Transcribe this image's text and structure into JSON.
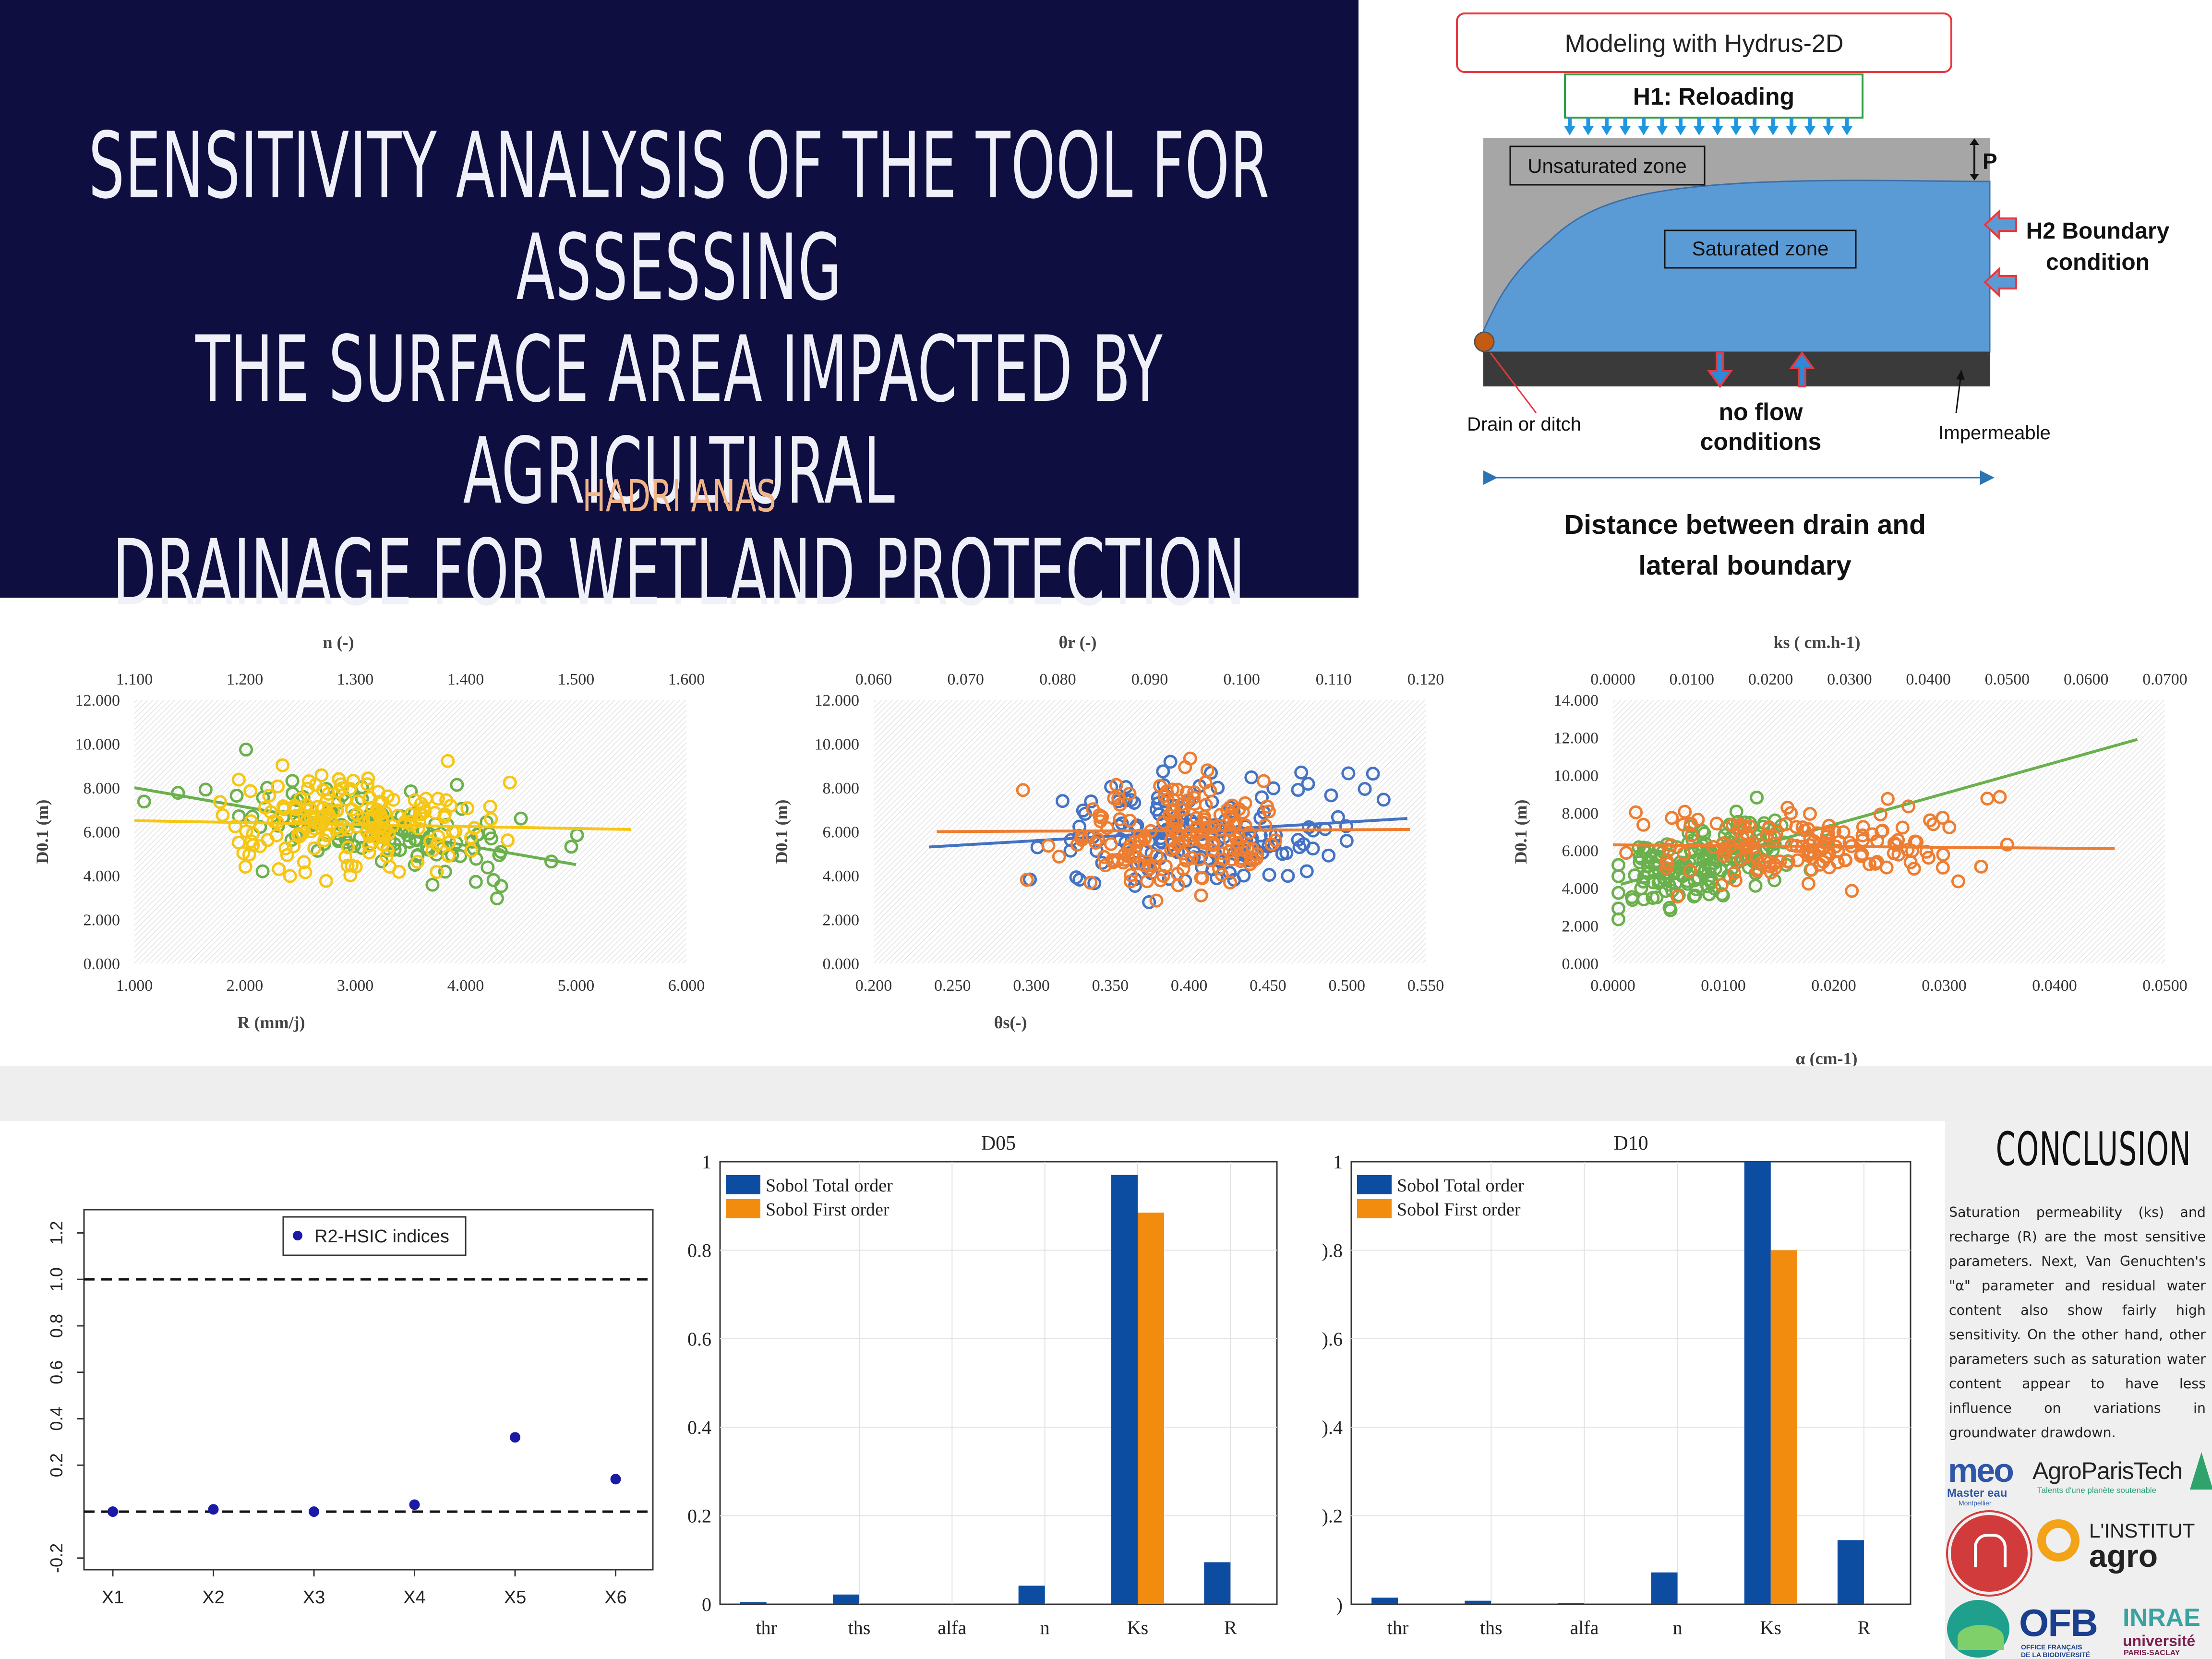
{
  "poster": {
    "title_lines": [
      "SENSITIVITY ANALYSIS OF THE TOOL FOR ASSESSING",
      "THE SURFACE AREA IMPACTED BY AGRICULTURAL",
      "DRAINAGE FOR WETLAND PROTECTION"
    ],
    "author": "HADRI ANAS",
    "colors": {
      "hero_bg": "#0f0e40",
      "author": "#f1b58a"
    }
  },
  "diagram": {
    "header": "Modeling with Hydrus-2D",
    "reloading": "H1: Reloading",
    "unsaturated": "Unsaturated zone",
    "saturated": "Saturated zone",
    "p_label": "P",
    "h2_line1": "H2 Boundary",
    "h2_line2": "condition",
    "drain_label": "Drain or ditch",
    "noflow_line1": "no flow",
    "noflow_line2": "conditions",
    "impermeable": "Impermeable",
    "distance_line1": "Distance between drain and",
    "distance_line2": "lateral boundary"
  },
  "conclusion": {
    "title": "CONCLUSION",
    "text": "Saturation permeability (ks) and recharge (R) are the most sensitive parameters. Next, Van Genuchten's \"α\" parameter and residual water content also show fairly high sensitivity. On the other hand, other parameters such as saturation water content appear to have less influence on variations in groundwater drawdown."
  },
  "logos": {
    "meo_main": "meo",
    "meo_sub": "Master eau",
    "meo_sub2": "Montpellier",
    "agroparis": "AgroParisTech",
    "agroparis_sub": "Talents d'une planète soutenable",
    "institut_top": "L'INSTITUT",
    "institut_main": "agro",
    "ofb": "OFB",
    "ofb_sub1": "OFFICE FRANÇAIS",
    "ofb_sub2": "DE LA BIODIVERSITÉ",
    "inrae": "INRAE",
    "inrae_sub": "université",
    "inrae_sub2": "PARIS-SACLAY"
  },
  "chart_data": [
    {
      "id": "scatter-n-R",
      "type": "scatter",
      "ylabel": "D0.1 (m)",
      "x_top_label": "n (-)",
      "x_bottom_label": "R (mm/j)",
      "ylim": [
        0,
        12
      ],
      "yticks": [
        "0.000",
        "2.000",
        "4.000",
        "6.000",
        "8.000",
        "10.000",
        "12.000"
      ],
      "top_axis": {
        "range": [
          1.1,
          1.6
        ],
        "ticks": [
          "1.100",
          "1.200",
          "1.300",
          "1.400",
          "1.500",
          "1.600"
        ]
      },
      "bottom_axis": {
        "range": [
          1.0,
          6.0
        ],
        "ticks": [
          "1.000",
          "2.000",
          "3.000",
          "4.000",
          "5.000",
          "6.000"
        ]
      },
      "series": [
        {
          "color": "#6ab04c",
          "axis": "top",
          "trend": [
            [
              1.1,
              8.0
            ],
            [
              1.5,
              4.5
            ]
          ],
          "center": [
            1.32,
            6.3
          ],
          "spread": [
            0.13,
            2.1
          ],
          "count": 120,
          "seed": 11
        },
        {
          "color": "#f6c615",
          "axis": "bottom",
          "trend": [
            [
              1.0,
              6.5
            ],
            [
              5.5,
              6.1
            ]
          ],
          "center": [
            3.0,
            6.2
          ],
          "spread": [
            0.95,
            2.2
          ],
          "count": 170,
          "seed": 23
        }
      ]
    },
    {
      "id": "scatter-thr-ths",
      "type": "scatter",
      "ylabel": "D0.1 (m)",
      "x_top_label": "θr (-)",
      "x_bottom_label": "θs(-)",
      "ylim": [
        0,
        12
      ],
      "yticks": [
        "0.000",
        "2.000",
        "4.000",
        "6.000",
        "8.000",
        "10.000",
        "12.000"
      ],
      "top_axis": {
        "range": [
          0.06,
          0.12
        ],
        "ticks": [
          "0.060",
          "0.070",
          "0.080",
          "0.090",
          "0.100",
          "0.110",
          "0.120"
        ]
      },
      "bottom_axis": {
        "range": [
          0.2,
          0.55
        ],
        "ticks": [
          "0.200",
          "0.250",
          "0.300",
          "0.350",
          "0.400",
          "0.450",
          "0.500",
          "0.550"
        ]
      },
      "series": [
        {
          "color": "#4472c4",
          "axis": "top",
          "trend": [
            [
              0.066,
              5.3
            ],
            [
              0.118,
              6.6
            ]
          ],
          "center": [
            0.095,
            6.0
          ],
          "spread": [
            0.014,
            2.3
          ],
          "count": 160,
          "seed": 37
        },
        {
          "color": "#ed7d31",
          "axis": "bottom",
          "trend": [
            [
              0.24,
              6.0
            ],
            [
              0.54,
              6.1
            ]
          ],
          "center": [
            0.39,
            6.0
          ],
          "spread": [
            0.06,
            2.3
          ],
          "count": 170,
          "seed": 41
        }
      ]
    },
    {
      "id": "scatter-ks-alpha",
      "type": "scatter",
      "ylabel": "D0.1 (m)",
      "x_top_label": "ks ( cm.h-1)",
      "x_bottom_label": "α (cm-1)",
      "ylim": [
        0,
        14
      ],
      "yticks": [
        "0.000",
        "2.000",
        "4.000",
        "6.000",
        "8.000",
        "10.000",
        "12.000",
        "14.000"
      ],
      "top_axis": {
        "range": [
          0.0,
          0.07
        ],
        "ticks": [
          "0.0000",
          "0.0100",
          "0.0200",
          "0.0300",
          "0.0400",
          "0.0500",
          "0.0600",
          "0.0700"
        ]
      },
      "bottom_axis": {
        "range": [
          0.0,
          0.055
        ],
        "ticks": [
          "0.0000",
          "0.0100",
          "0.0200",
          "0.0300",
          "0.0400",
          "0.0500"
        ]
      },
      "series": [
        {
          "color": "#6ab04c",
          "axis": "top",
          "trend": [
            [
              0.001,
              4.2
            ],
            [
              0.0665,
              11.9
            ]
          ],
          "center": [
            0.012,
            6.0
          ],
          "spread": [
            0.01,
            2.0
          ],
          "count": 170,
          "seed": 53
        },
        {
          "color": "#ed7d31",
          "axis": "bottom",
          "trend": [
            [
              0.0,
              6.3
            ],
            [
              0.05,
              6.1
            ]
          ],
          "center": [
            0.02,
            6.2
          ],
          "spread": [
            0.013,
            2.1
          ],
          "count": 150,
          "seed": 67
        }
      ]
    },
    {
      "id": "hsic",
      "type": "scatter",
      "legend": "R2-HSIC indices",
      "categories": [
        "X1",
        "X2",
        "X3",
        "X4",
        "X5",
        "X6"
      ],
      "values": [
        0.0,
        0.01,
        0.0,
        0.03,
        0.32,
        0.14
      ],
      "ylim": [
        -0.25,
        1.3
      ],
      "yticks": [
        "-0.2",
        "0.2",
        "0.4",
        "0.6",
        "0.8",
        "1.0",
        "1.2"
      ],
      "reference_lines": [
        0.0,
        1.0
      ]
    },
    {
      "id": "sobol-d05",
      "type": "bar",
      "title": "D05",
      "categories": [
        "thr",
        "ths",
        "alfa",
        "n",
        "Ks",
        "R"
      ],
      "series": [
        {
          "name": "Sobol Total order",
          "color": "#0c4da2",
          "values": [
            0.005,
            0.022,
            0.0,
            0.042,
            0.97,
            0.095
          ]
        },
        {
          "name": "Sobol First order",
          "color": "#f28c0f",
          "values": [
            0.0,
            0.0,
            0.0,
            0.0,
            0.885,
            0.003
          ]
        }
      ],
      "ylim": [
        0,
        1
      ],
      "yticks": [
        "0",
        "0.2",
        "0.4",
        "0.6",
        "0.8",
        "1"
      ]
    },
    {
      "id": "sobol-d10",
      "type": "bar",
      "title": "D10",
      "categories": [
        "thr",
        "ths",
        "alfa",
        "n",
        "Ks",
        "R"
      ],
      "series": [
        {
          "name": "Sobol Total order",
          "color": "#0c4da2",
          "values": [
            0.015,
            0.008,
            0.003,
            0.072,
            1.0,
            0.145
          ]
        },
        {
          "name": "Sobol First order",
          "color": "#f28c0f",
          "values": [
            0.0,
            0.0,
            0.0,
            0.0,
            0.8,
            0.0
          ]
        }
      ],
      "ylim": [
        0,
        1
      ],
      "yticks": [
        ")",
        ").2",
        ").4",
        ").6",
        ").8",
        "1"
      ]
    }
  ]
}
